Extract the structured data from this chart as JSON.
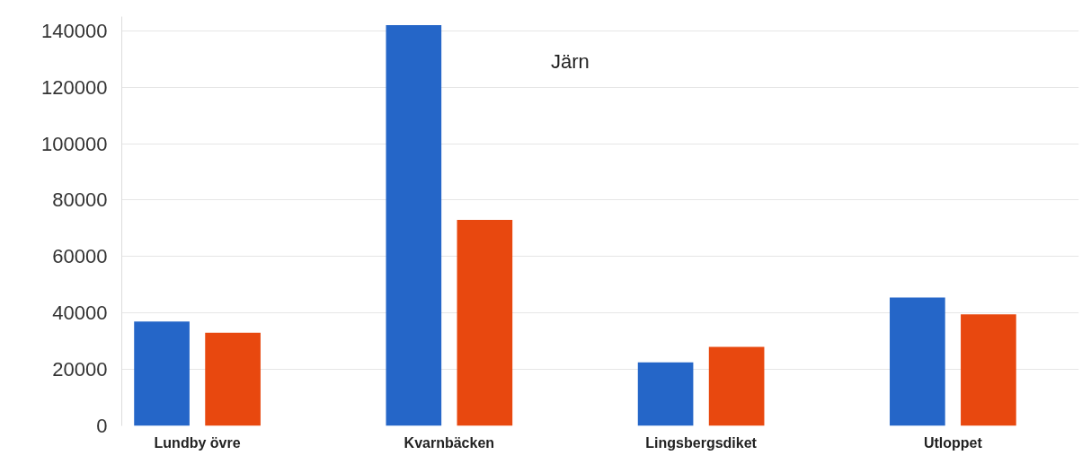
{
  "chart_data": {
    "type": "bar",
    "title": "Järn",
    "categories": [
      "Lundby övre",
      "Kvarnbäcken",
      "Lingsbergsdiket",
      "Utloppet"
    ],
    "series": [
      {
        "color": "#2566c8",
        "values": [
          37000,
          142000,
          22500,
          45500
        ]
      },
      {
        "color": "#e8480f",
        "values": [
          33000,
          73000,
          28000,
          39500
        ]
      }
    ],
    "ylim": [
      0,
      145000
    ],
    "yticks": [
      0,
      20000,
      40000,
      60000,
      80000,
      100000,
      120000,
      140000
    ],
    "grid": "y"
  }
}
